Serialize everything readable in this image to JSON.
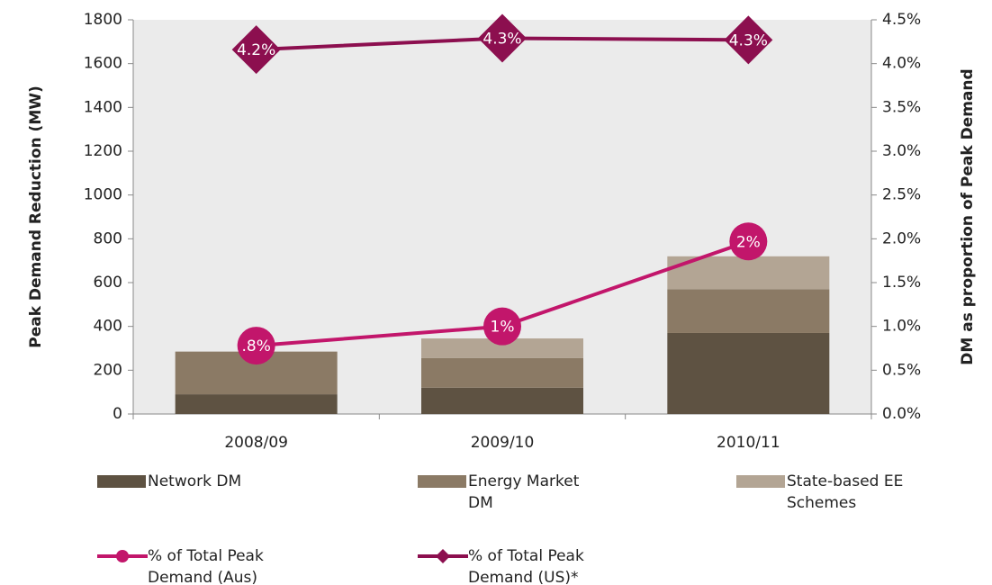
{
  "chart_data": {
    "type": "bar",
    "stacked": true,
    "categories": [
      "2008/09",
      "2009/10",
      "2010/11"
    ],
    "ylabel": "Peak Demand Reduction (MW)",
    "y2label": "DM as proportion of Peak Demand",
    "ylim": [
      0,
      1800
    ],
    "yticks": [
      0,
      200,
      400,
      600,
      800,
      1000,
      1200,
      1400,
      1600,
      1800
    ],
    "y2lim": [
      0,
      4.5
    ],
    "y2ticks": [
      {
        "value": 0,
        "label": "0.0%"
      },
      {
        "value": 0.5,
        "label": "0.5%"
      },
      {
        "value": 1,
        "label": "1.0%"
      },
      {
        "value": 1.5,
        "label": "1.5%"
      },
      {
        "value": 2,
        "label": "2.0%"
      },
      {
        "value": 2.5,
        "label": "2.5%"
      },
      {
        "value": 3,
        "label": "3.0%"
      },
      {
        "value": 3.5,
        "label": "3.5%"
      },
      {
        "value": 4,
        "label": "4.0%"
      },
      {
        "value": 4.5,
        "label": "4.5%"
      }
    ],
    "series": [
      {
        "name": "Network DM",
        "color": "#5e5242",
        "values": [
          90,
          120,
          370
        ]
      },
      {
        "name": "Energy Market DM",
        "color": "#8b7a65",
        "values": [
          195,
          135,
          200
        ]
      },
      {
        "name": "State-based EE Schemes",
        "color": "#b3a594",
        "values": [
          0,
          90,
          150
        ]
      },
      {
        "name": "% of Total Peak Demand (Aus)",
        "color": "#c2166b",
        "type": "line",
        "axis": "y2",
        "marker": "circle",
        "values": [
          0.78,
          1.0,
          1.97
        ],
        "value_labels": [
          ".8%",
          "1%",
          "2%"
        ]
      },
      {
        "name": "% of Total Peak Demand (US)*",
        "color": "#8c0f4f",
        "type": "line",
        "axis": "y2",
        "marker": "diamond",
        "values": [
          4.16,
          4.29,
          4.27
        ],
        "value_labels": [
          "4.2%",
          "4.3%",
          "4.3%"
        ]
      }
    ]
  }
}
